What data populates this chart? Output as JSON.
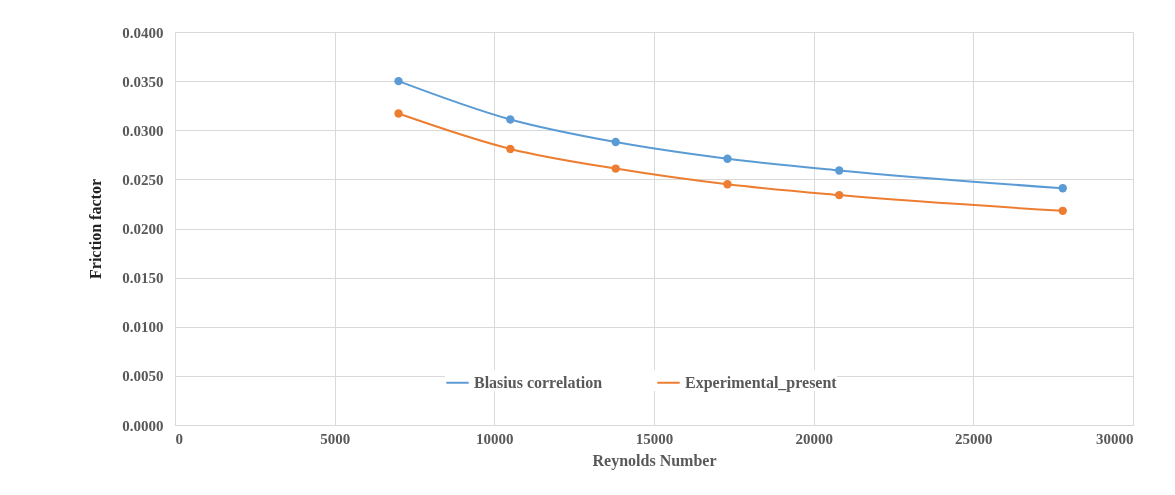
{
  "chart_data": {
    "type": "line",
    "xlabel": "Reynolds Number",
    "ylabel": "Friction factor",
    "x": [
      7000,
      10500,
      13800,
      17300,
      20800,
      27800
    ],
    "series": [
      {
        "name": "Blasius correlation",
        "color": "#5b9bd5",
        "values": [
          0.035,
          0.0311,
          0.0288,
          0.0271,
          0.0259,
          0.0241
        ]
      },
      {
        "name": "Experimental_present",
        "color": "#ed7d31",
        "values": [
          0.0317,
          0.0281,
          0.0261,
          0.0245,
          0.0234,
          0.0218
        ]
      }
    ],
    "xlim": [
      0,
      30000
    ],
    "xticks": [
      0,
      5000,
      10000,
      15000,
      20000,
      25000,
      30000
    ],
    "ylim": [
      0,
      0.04
    ],
    "yticks": [
      {
        "value": 0,
        "label": "0.0000"
      },
      {
        "value": 0.005,
        "label": "0.0050"
      },
      {
        "value": 0.01,
        "label": "0.0100"
      },
      {
        "value": 0.015,
        "label": "0.0150"
      },
      {
        "value": 0.02,
        "label": "0.0200"
      },
      {
        "value": 0.025,
        "label": "0.0250"
      },
      {
        "value": 0.03,
        "label": "0.0300"
      },
      {
        "value": 0.035,
        "label": "0.0350"
      },
      {
        "value": 0.04,
        "label": "0.0400"
      }
    ],
    "grid": true,
    "legend": "bottom right",
    "marker": "circle",
    "line_style": "solid"
  }
}
